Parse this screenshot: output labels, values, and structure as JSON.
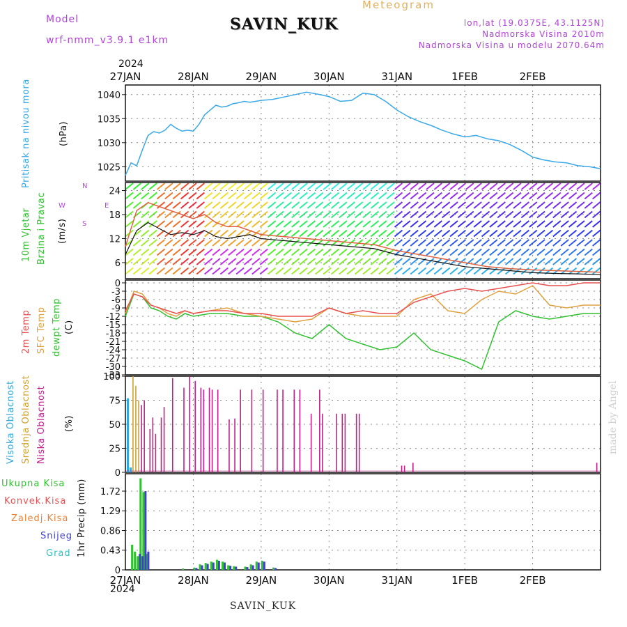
{
  "header": {
    "model_label": "Model",
    "model_version": "wrf-nmm_v3.9.1  e1km",
    "station": "SAVIN_KUK",
    "meteogram": "Meteogram",
    "lonlat": "lon,lat (19.0375E, 43.1125N)",
    "elevation": "Nadmorska Visina 2010m",
    "model_elevation": "Nadmorska Visina u modelu 2070.64m"
  },
  "footer": {
    "station": "SAVIN_KUK",
    "credit": "made by Angel",
    "year": "2024"
  },
  "colors": {
    "pressure": "#3aa8e8",
    "wind_speed": "#111111",
    "gust": "#e06040",
    "t2m": "#e85050",
    "sfc": "#e0a040",
    "dew": "#30c030",
    "high_cloud": "#30a8e0",
    "mid_cloud": "#d0a030",
    "low_cloud": "#c0208a",
    "total_precip": "#30c030",
    "snow": "#4040d0",
    "grad": "#30c0c0"
  },
  "panels": {
    "pressure": {
      "label1": "Pritisak na nivou mora",
      "unit": "(hPa)"
    },
    "wind": {
      "label1": "10m Vjetar",
      "label2": "Brzina i Pravac",
      "unit": "(m/s)",
      "compass_n": "N",
      "compass_s": "S",
      "compass_w": "W",
      "compass_e": "E"
    },
    "temp": {
      "label1": "2m Temp",
      "label2": "SFC Temp",
      "label3": "dewpt Temp",
      "unit": "(C)"
    },
    "cloud": {
      "label1": "Visoka Oblacnost",
      "label2": "Srednja Oblacnost",
      "label3": "Niska Oblacnost",
      "unit": "(%)"
    },
    "precip": {
      "label1": "Ukupna Kisa",
      "label2": "Konvek.Kisa",
      "label3": "Zaledj.Kisa",
      "label4": "Snijeg",
      "label5": "Grad",
      "unit": "1hr Precip (mm)"
    }
  },
  "chart_data": [
    {
      "type": "line",
      "title": "Pritisak na nivou mora",
      "ylabel": "(hPa)",
      "x_tick_labels": [
        "27JAN",
        "28JAN",
        "29JAN",
        "30JAN",
        "31JAN",
        "1FEB",
        "2FEB"
      ],
      "ylim": [
        1022,
        1042
      ],
      "yticks": [
        1025,
        1030,
        1035,
        1040
      ],
      "x_hours": [
        0,
        2,
        4,
        6,
        8,
        10,
        12,
        14,
        16,
        18,
        20,
        22,
        24,
        26,
        28,
        30,
        32,
        34,
        36,
        38,
        40,
        42,
        44,
        46,
        48,
        52,
        56,
        60,
        64,
        68,
        72,
        76,
        80,
        84,
        88,
        92,
        96,
        100,
        104,
        108,
        112,
        116,
        120,
        124,
        128,
        132,
        136,
        140,
        144,
        148,
        152,
        156,
        160,
        164,
        168
      ],
      "series": [
        {
          "name": "pressure",
          "values": [
            1023.2,
            1025.8,
            1025.2,
            1028.5,
            1031.5,
            1032.3,
            1032.0,
            1032.6,
            1033.8,
            1033.0,
            1032.4,
            1032.6,
            1032.4,
            1033.8,
            1035.8,
            1036.8,
            1037.8,
            1037.4,
            1037.6,
            1038.1,
            1038.3,
            1038.6,
            1038.4,
            1038.6,
            1038.8,
            1039.0,
            1039.5,
            1040.0,
            1040.5,
            1040.1,
            1039.6,
            1038.6,
            1038.8,
            1040.3,
            1040.0,
            1038.6,
            1036.8,
            1035.4,
            1034.4,
            1033.6,
            1032.6,
            1031.8,
            1031.2,
            1031.5,
            1030.8,
            1030.4,
            1029.6,
            1028.4,
            1027.0,
            1026.4,
            1026.0,
            1025.8,
            1025.2,
            1025.0,
            1024.6
          ]
        }
      ]
    },
    {
      "type": "line",
      "title": "10m Vjetar Brzina i Pravac",
      "ylabel": "(m/s)",
      "ylim": [
        2,
        26
      ],
      "yticks": [
        6,
        12,
        18,
        24
      ],
      "x_hours": [
        0,
        4,
        8,
        12,
        16,
        20,
        24,
        28,
        32,
        36,
        40,
        44,
        48,
        56,
        64,
        72,
        80,
        88,
        96,
        104,
        112,
        120,
        128,
        136,
        144,
        152,
        160,
        168
      ],
      "series": [
        {
          "name": "wind_speed",
          "values": [
            8,
            14,
            16,
            14.5,
            13,
            13.5,
            13,
            14,
            12.5,
            12,
            12.5,
            13,
            12,
            11.5,
            11,
            10.5,
            10,
            9.5,
            8,
            7,
            6,
            5,
            4.5,
            4,
            3.5,
            3.3,
            3.2,
            3.0
          ]
        },
        {
          "name": "gust",
          "values": [
            10,
            19,
            21,
            20,
            19,
            18,
            17,
            18,
            16,
            15,
            15,
            14,
            13,
            12.5,
            12,
            11.5,
            11,
            10.5,
            9,
            8,
            7,
            6,
            5,
            4.5,
            4.2,
            4,
            3.8,
            3.6
          ]
        }
      ]
    },
    {
      "type": "line",
      "title": "2m Temp / SFC Temp / dewpt Temp",
      "ylabel": "(C)",
      "ylim": [
        -33,
        1
      ],
      "yticks": [
        0,
        -3,
        -6,
        -9,
        -12,
        -15,
        -18,
        -21,
        -24,
        -27,
        -30,
        -33
      ],
      "x_hours": [
        0,
        3,
        6,
        9,
        12,
        15,
        18,
        21,
        24,
        30,
        36,
        42,
        48,
        54,
        60,
        66,
        72,
        78,
        84,
        90,
        96,
        102,
        108,
        114,
        120,
        126,
        132,
        138,
        144,
        150,
        156,
        162,
        168
      ],
      "series": [
        {
          "name": "2m Temp",
          "values": [
            -10,
            -4,
            -5,
            -8,
            -9,
            -10,
            -11,
            -10,
            -11,
            -10,
            -10,
            -11,
            -11,
            -12,
            -12,
            -12,
            -9,
            -11,
            -10,
            -11,
            -11,
            -7,
            -5,
            -3,
            -2,
            -3,
            -2,
            -1,
            0,
            -1,
            -1,
            0,
            0
          ]
        },
        {
          "name": "SFC Temp",
          "values": [
            -11,
            -3,
            -4,
            -8,
            -9,
            -11,
            -12,
            -10,
            -11,
            -10,
            -9,
            -11,
            -12,
            -13,
            -14,
            -13,
            -9,
            -11,
            -12,
            -12,
            -12,
            -6,
            -4,
            -10,
            -11,
            -6,
            -3,
            -4,
            -1,
            -8,
            -9,
            -8,
            -8
          ]
        },
        {
          "name": "dewpt Temp",
          "values": [
            -12,
            -4,
            -5,
            -9,
            -10,
            -12,
            -13,
            -11,
            -12,
            -11,
            -11,
            -12,
            -12,
            -14,
            -18,
            -20,
            -15,
            -20,
            -22,
            -24,
            -23,
            -18,
            -24,
            -26,
            -28,
            -31,
            -14,
            -10,
            -12,
            -13,
            -12,
            -11,
            -11
          ]
        }
      ]
    },
    {
      "type": "bar",
      "title": "Oblacnost",
      "ylabel": "(%)",
      "ylim": [
        0,
        100
      ],
      "yticks": [
        0,
        25,
        50,
        75,
        100
      ],
      "series": [
        {
          "name": "Visoka Oblacnost",
          "x_hours": [
            0,
            1
          ],
          "values": [
            77,
            5
          ]
        },
        {
          "name": "Srednja Oblacnost",
          "x_hours": [
            2,
            3,
            4
          ],
          "values": [
            100,
            90,
            75
          ]
        },
        {
          "name": "Niska Oblacnost",
          "x_hours": [
            5,
            6,
            8,
            9,
            10,
            12,
            13,
            16,
            20,
            22,
            24,
            26,
            27,
            29,
            30,
            32,
            36,
            38,
            40,
            44,
            48,
            53,
            55,
            59,
            61,
            65,
            68,
            69,
            74,
            76,
            77,
            81,
            82,
            97,
            98,
            101,
            166
          ],
          "values": [
            70,
            75,
            45,
            57,
            40,
            57,
            68,
            98,
            88,
            100,
            95,
            88,
            86,
            88,
            86,
            86,
            55,
            56,
            86,
            86,
            86,
            86,
            86,
            86,
            86,
            61,
            86,
            61,
            61,
            61,
            61,
            61,
            61,
            7,
            7,
            10,
            10
          ]
        }
      ]
    },
    {
      "type": "bar",
      "title": "1hr Precip",
      "ylabel": "1hr Precip (mm)",
      "ylim": [
        0,
        2.1
      ],
      "yticks": [
        0,
        0.43,
        0.86,
        1.29,
        1.72
      ],
      "series": [
        {
          "name": "Ukupna Kisa",
          "x_hours": [
            2,
            3,
            4,
            5,
            6,
            7,
            20,
            24,
            26,
            28,
            30,
            32,
            34,
            36,
            38,
            42,
            44,
            46,
            48,
            52
          ],
          "values": [
            0.55,
            0.4,
            0.3,
            2.0,
            1.7,
            0.35,
            0.03,
            0.05,
            0.12,
            0.15,
            0.18,
            0.22,
            0.18,
            0.1,
            0.08,
            0.07,
            0.12,
            0.18,
            0.2,
            0.05
          ]
        },
        {
          "name": "Snijeg",
          "x_hours": [
            4,
            5,
            6,
            7,
            24,
            26,
            28,
            30,
            32,
            34,
            36,
            38,
            42,
            44,
            46,
            48,
            52
          ],
          "values": [
            0.35,
            0.3,
            1.72,
            0.4,
            0.04,
            0.1,
            0.13,
            0.16,
            0.2,
            0.16,
            0.09,
            0.07,
            0.06,
            0.1,
            0.16,
            0.18,
            0.04
          ]
        }
      ]
    }
  ]
}
